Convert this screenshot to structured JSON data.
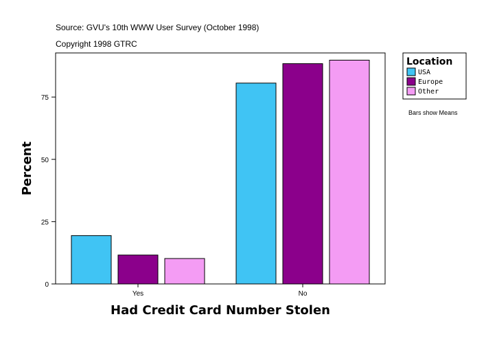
{
  "header": {
    "source": "Source: GVU's 10th WWW User Survey (October 1998)",
    "copyright": "Copyright 1998 GTRC"
  },
  "legend": {
    "title": "Location",
    "placement": "right"
  },
  "note": "Bars show Means",
  "chart_data": {
    "type": "bar",
    "categories": [
      "Yes",
      "No"
    ],
    "series": [
      {
        "name": "USA",
        "color": "#40C4F4",
        "values": [
          19.4,
          80.6
        ]
      },
      {
        "name": "Europe",
        "color": "#8B008B",
        "values": [
          11.6,
          88.4
        ]
      },
      {
        "name": "Other",
        "color": "#F49CF4",
        "values": [
          10.2,
          89.8
        ]
      }
    ],
    "xlabel": "Had Credit Card Number Stolen",
    "ylabel": "Percent",
    "ylim": [
      0,
      92.7
    ],
    "yticks": [
      0,
      25,
      50,
      75
    ],
    "grid": false
  }
}
